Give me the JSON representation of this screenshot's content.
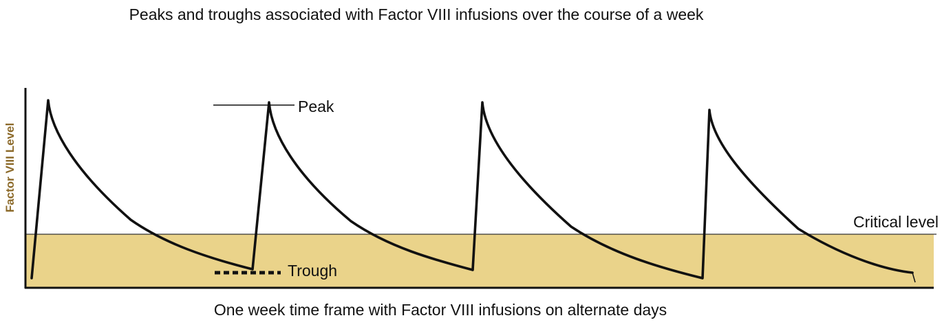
{
  "title": "Peaks and troughs associated with Factor VIII infusions over the course of a week",
  "x_axis_label": "One week time frame with Factor VIII infusions on alternate days",
  "y_axis_label": "Factor VIII Level",
  "annotations": {
    "peak": "Peak",
    "trough": "Trough",
    "critical": "Critical level"
  },
  "colors": {
    "critical_fill": "#ead38a",
    "curve": "#111111",
    "axis": "#111111",
    "y_label": "#8c6a2a"
  }
}
